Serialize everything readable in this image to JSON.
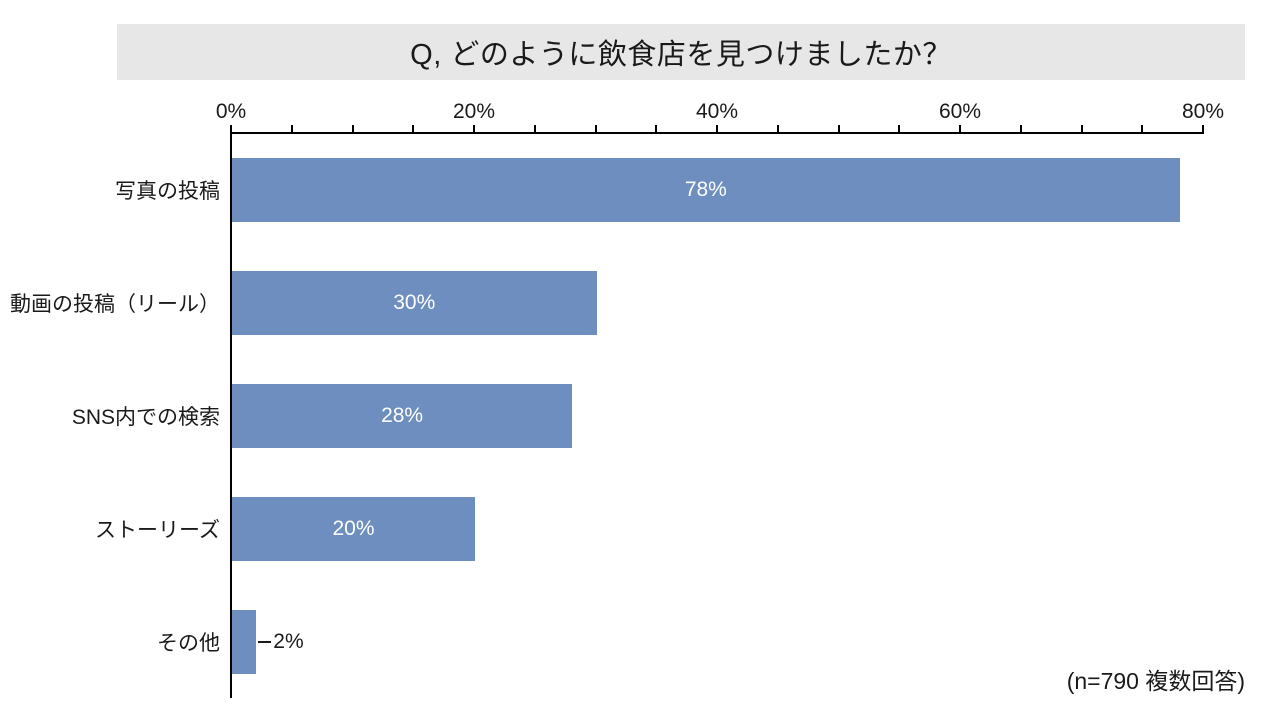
{
  "title": "Q, どのように飲食店を見つけましたか？",
  "footnote": "(n=790 複数回答)",
  "colors": {
    "bar": "#6d8ebe",
    "title_band": "#e7e7e7",
    "axis": "#000000",
    "label_inside_bar": "#ffffff",
    "text": "#1a1a1a",
    "background": "#ffffff"
  },
  "chart_data": {
    "type": "bar",
    "orientation": "horizontal",
    "title": "Q, どのように飲食店を見つけましたか？",
    "categories": [
      "写真の投稿",
      "動画の投稿（リール）",
      "SNS内での検索",
      "ストーリーズ",
      "その他"
    ],
    "values": [
      78,
      30,
      28,
      20,
      2
    ],
    "value_labels": [
      "78%",
      "30%",
      "28%",
      "20%",
      "2%"
    ],
    "xlabel": "",
    "ylabel": "",
    "xlim": [
      0,
      80
    ],
    "x_tick_labels": [
      "0%",
      "20%",
      "40%",
      "60%",
      "80%"
    ],
    "x_tick_values": [
      0,
      20,
      40,
      60,
      80
    ],
    "minor_tick_step": 5,
    "grid": false,
    "legend": "none",
    "annotation": "(n=790 複数回答)"
  }
}
